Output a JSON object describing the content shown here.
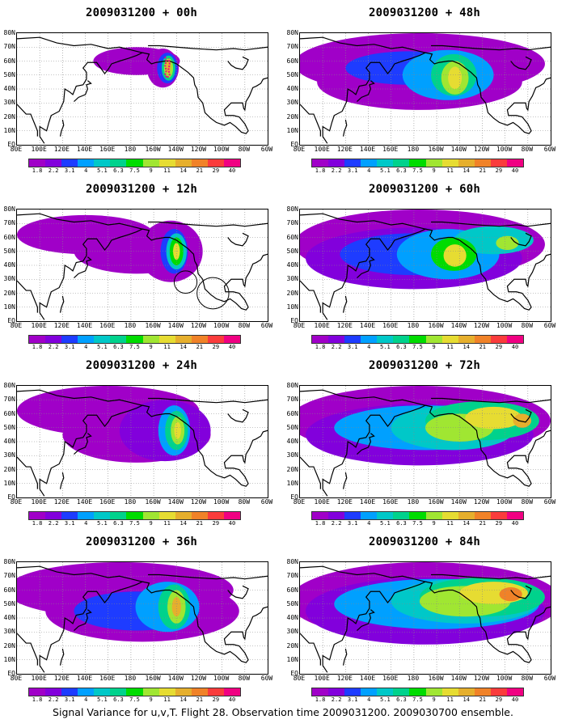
{
  "panels": [
    {
      "title": "2009031200 + 00h",
      "forecast_hour": 0
    },
    {
      "title": "2009031200 + 48h",
      "forecast_hour": 48
    },
    {
      "title": "2009031200 + 12h",
      "forecast_hour": 12
    },
    {
      "title": "2009031200 + 60h",
      "forecast_hour": 60
    },
    {
      "title": "2009031200 + 24h",
      "forecast_hour": 24
    },
    {
      "title": "2009031200 + 72h",
      "forecast_hour": 72
    },
    {
      "title": "2009031200 + 36h",
      "forecast_hour": 36
    },
    {
      "title": "2009031200 + 84h",
      "forecast_hour": 84
    }
  ],
  "map": {
    "lon_range": [
      80,
      300
    ],
    "lat_range": [
      0,
      80
    ],
    "x_tick_labels": [
      "80E",
      "100E",
      "120E",
      "140E",
      "160E",
      "180",
      "160W",
      "140W",
      "120W",
      "100W",
      "80W",
      "60W"
    ],
    "y_tick_labels": [
      "80N",
      "70N",
      "60N",
      "50N",
      "40N",
      "30N",
      "20N",
      "10N",
      "EQ"
    ],
    "grid": "dotted"
  },
  "colorbar": {
    "labels": [
      "1.8",
      "2.2",
      "3.1",
      "4",
      "5.1",
      "6.3",
      "7.5",
      "9",
      "11",
      "14",
      "21",
      "29",
      "40"
    ],
    "colors": [
      "#a000c8",
      "#8200dc",
      "#1e3cff",
      "#00a0ff",
      "#00c8c8",
      "#00d28c",
      "#00dc00",
      "#a0e632",
      "#e6dc32",
      "#e6af2d",
      "#f08228",
      "#fa3c3c",
      "#f00082"
    ]
  },
  "caption": "Signal Variance for u,v,T. Flight 28. Observation time 2009031200. 2009030700 ensemble."
}
